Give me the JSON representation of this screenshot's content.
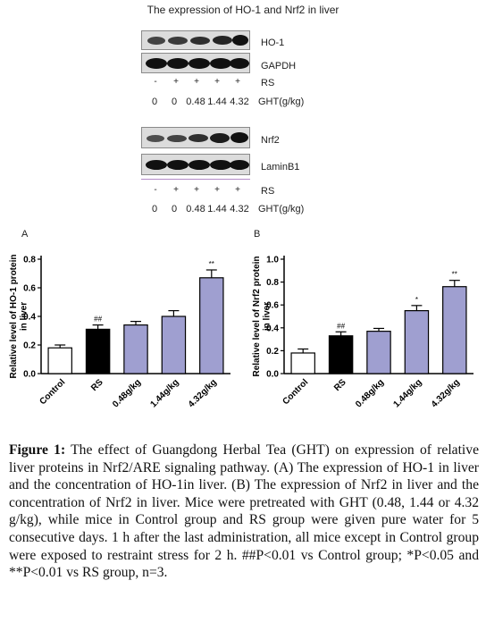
{
  "blot_title": "The expression of HO-1 and Nrf2 in liver",
  "blot_top": {
    "bands": [
      "HO-1",
      "GAPDH"
    ],
    "rs_signs": [
      "-",
      "+",
      "+",
      "+",
      "+"
    ],
    "rs_label": "RS",
    "doses": [
      "0",
      "0",
      "0.48",
      "1.44",
      "4.32"
    ],
    "ght_label": "GHT(g/kg)"
  },
  "blot_bottom": {
    "bands": [
      "Nrf2",
      "LaminB1"
    ],
    "rs_signs": [
      "-",
      "+",
      "+",
      "+",
      "+"
    ],
    "rs_label": "RS",
    "doses": [
      "0",
      "0",
      "0.48",
      "1.44",
      "4.32"
    ],
    "ght_label": "GHT(g/kg)"
  },
  "colors": {
    "control_bar": "#ffffff",
    "rs_bar": "#000000",
    "ght_bar": "#9f9fd0"
  },
  "chart_data": [
    {
      "panel": "A",
      "type": "bar",
      "ylabel": "Relative level of HO-1 protein in liver",
      "categories": [
        "Control",
        "RS",
        "0.48g/kg",
        "1.44g/kg",
        "4.32g/kg"
      ],
      "values": [
        0.18,
        0.31,
        0.34,
        0.4,
        0.67
      ],
      "errors": [
        0.02,
        0.03,
        0.025,
        0.04,
        0.055
      ],
      "annotations": [
        "",
        "##",
        "",
        "",
        "**"
      ],
      "ylim": [
        0,
        0.8
      ],
      "yticks": [
        "0.0",
        "0.2",
        "0.4",
        "0.6",
        "0.8"
      ]
    },
    {
      "panel": "B",
      "type": "bar",
      "ylabel": "Relative level of Nrf2 protein in liver",
      "categories": [
        "Control",
        "RS",
        "0.48g/kg",
        "1.44g/kg",
        "4.32g/kg"
      ],
      "values": [
        0.18,
        0.33,
        0.37,
        0.55,
        0.76
      ],
      "errors": [
        0.035,
        0.035,
        0.025,
        0.045,
        0.055
      ],
      "annotations": [
        "",
        "##",
        "",
        "*",
        "**"
      ],
      "ylim": [
        0,
        1.0
      ],
      "yticks": [
        "0.0",
        "0.2",
        "0.4",
        "0.6",
        "0.8",
        "1.0"
      ]
    }
  ],
  "caption": {
    "label": "Figure 1:",
    "text": " The effect of Guangdong Herbal Tea (GHT) on expression of relative liver proteins in Nrf2/ARE signaling pathway. (A) The expression of HO-1 in liver and the concentration of HO-1in liver. (B) The expression of Nrf2 in liver and the concentration of Nrf2 in liver. Mice were pretreated with GHT (0.48, 1.44 or 4.32 g/kg), while mice in Control group and RS group were given pure water for 5 consecutive days. 1 h after the last administration, all mice except in Control group were exposed to restraint stress for 2 h. ##P<0.01 vs Control group; *P<0.05 and **P<0.01 vs RS group, n=3."
  }
}
